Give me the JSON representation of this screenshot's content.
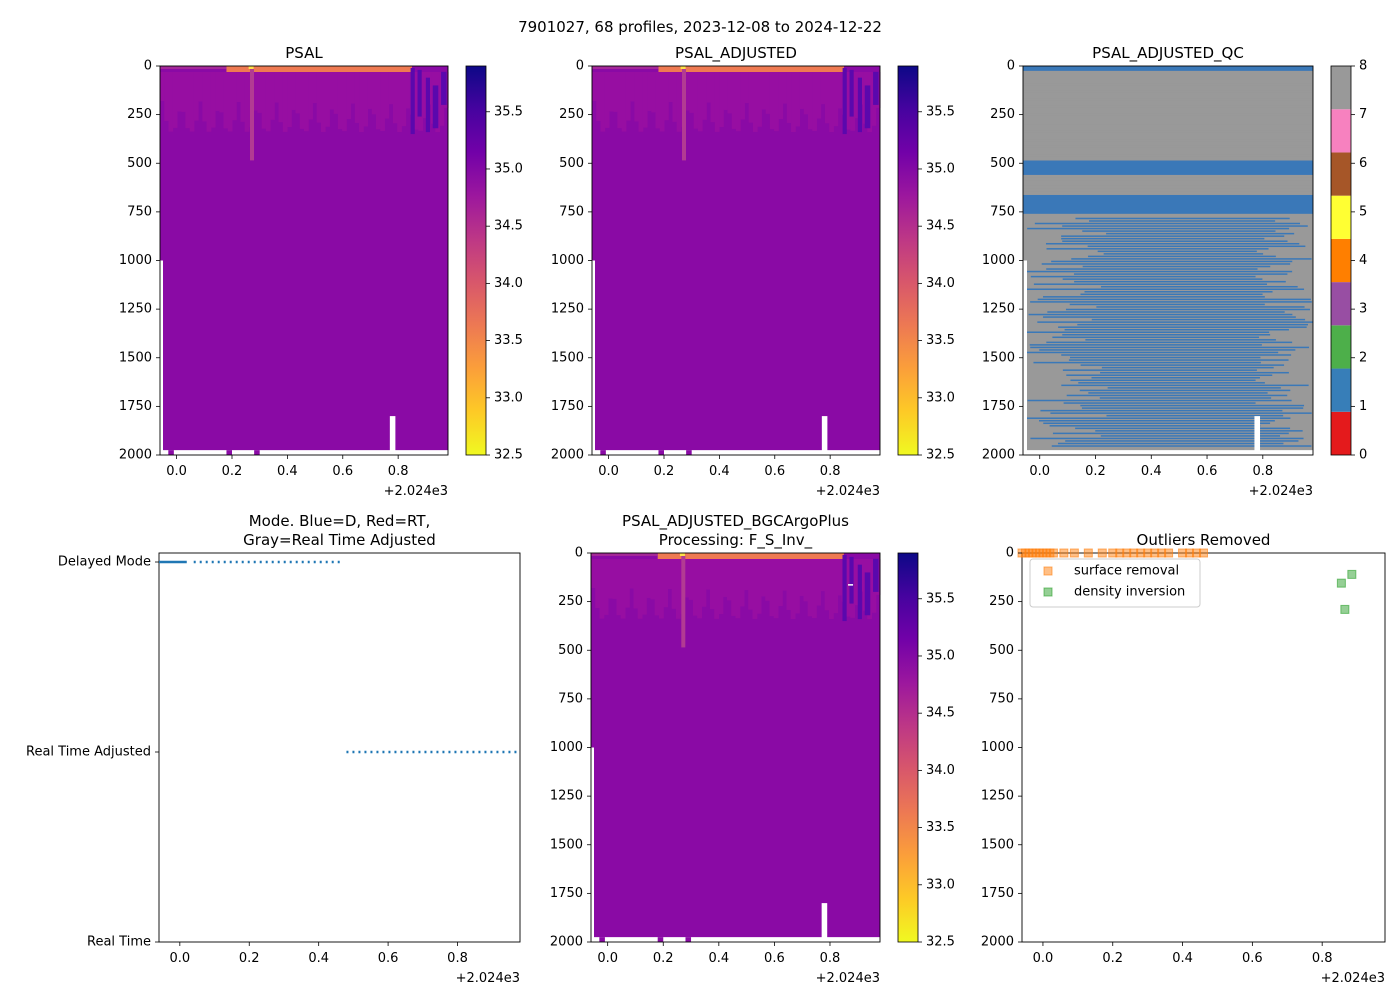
{
  "figure": {
    "suptitle": "7901027, 68 profiles, 2023-12-08 to 2024-12-22",
    "x_offset_label": "+2.024e3"
  },
  "colors": {
    "plasma": [
      "#0d0887",
      "#46039f",
      "#7201a8",
      "#9c179e",
      "#bd3786",
      "#d8576b",
      "#ed7953",
      "#fb9f3a",
      "#fdca26",
      "#f0f921"
    ],
    "field_main": "#8a0aa5",
    "field_upper": "#970ea2",
    "surface_high": "#ee7a52",
    "deep_blue": "#5a08ad",
    "qc_blue": "#3a78b8",
    "qc_gray": "#999999",
    "mode_line": "#1f77b4",
    "surface_marker": "#ff7f0e",
    "density_marker": "#2ca02c"
  },
  "chart_data": [
    {
      "id": "psal",
      "type": "heatmap",
      "title": "PSAL",
      "xlim": [
        -0.06,
        0.98
      ],
      "xticks": [
        0.0,
        0.2,
        0.4,
        0.6,
        0.8
      ],
      "ylim": [
        2000,
        0
      ],
      "yticks": [
        0,
        250,
        500,
        750,
        1000,
        1250,
        1500,
        1750,
        2000
      ],
      "colorbar": {
        "range": [
          32.5,
          35.9
        ],
        "ticks": [
          32.5,
          33.0,
          33.5,
          34.0,
          34.5,
          35.0,
          35.5
        ]
      },
      "colormap": "plasma_r",
      "typical_value": 34.9,
      "surface_value": 33.3,
      "gap_x": [
        0.77,
        0.79
      ],
      "gap_depth": [
        1800,
        2000
      ]
    },
    {
      "id": "psal_adj",
      "type": "heatmap",
      "title": "PSAL_ADJUSTED",
      "xlim": [
        -0.06,
        0.98
      ],
      "xticks": [
        0.0,
        0.2,
        0.4,
        0.6,
        0.8
      ],
      "ylim": [
        2000,
        0
      ],
      "yticks": [
        0,
        250,
        500,
        750,
        1000,
        1250,
        1500,
        1750,
        2000
      ],
      "colorbar": {
        "range": [
          32.5,
          35.9
        ],
        "ticks": [
          32.5,
          33.0,
          33.5,
          34.0,
          34.5,
          35.0,
          35.5
        ]
      },
      "colormap": "plasma_r",
      "typical_value": 34.9,
      "surface_value": 33.3,
      "gap_x": [
        0.77,
        0.79
      ],
      "gap_depth": [
        1800,
        2000
      ]
    },
    {
      "id": "psal_qc",
      "type": "heatmap",
      "title": "PSAL_ADJUSTED_QC",
      "xlim": [
        -0.06,
        0.98
      ],
      "xticks": [
        0.0,
        0.2,
        0.4,
        0.6,
        0.8
      ],
      "ylim": [
        2000,
        0
      ],
      "yticks": [
        0,
        250,
        500,
        750,
        1000,
        1250,
        1500,
        1750,
        2000
      ],
      "colorbar": {
        "range": [
          0,
          8
        ],
        "ticks": [
          0,
          1,
          2,
          3,
          4,
          5,
          6,
          7,
          8
        ],
        "classes": [
          {
            "value": 0,
            "color": "#e41a1c"
          },
          {
            "value": 1,
            "color": "#377eb8"
          },
          {
            "value": 2,
            "color": "#4daf4a"
          },
          {
            "value": 3,
            "color": "#984ea3"
          },
          {
            "value": 4,
            "color": "#ff7f00"
          },
          {
            "value": 5,
            "color": "#ffff33"
          },
          {
            "value": 6,
            "color": "#a65628"
          },
          {
            "value": 7,
            "color": "#f781bf"
          },
          {
            "value": 8,
            "color": "#999999"
          }
        ]
      },
      "blue_bands_depth": [
        [
          0,
          20
        ],
        [
          470,
          560
        ],
        [
          650,
          740
        ]
      ],
      "gap_x": [
        0.77,
        0.79
      ],
      "gap_depth": [
        1800,
        2000
      ]
    },
    {
      "id": "mode",
      "type": "line",
      "title_lines": [
        "Mode. Blue=D, Red=RT,",
        "Gray=Real Time Adjusted"
      ],
      "xlim": [
        -0.06,
        0.98
      ],
      "xticks": [
        0.0,
        0.2,
        0.4,
        0.6,
        0.8
      ],
      "ycategories": [
        "Real Time",
        "Real Time Adjusted",
        "Delayed Mode"
      ],
      "solid_segment": {
        "category": "Delayed Mode",
        "x": [
          -0.06,
          0.02
        ]
      },
      "dotted_segments": [
        {
          "category": "Delayed Mode",
          "x": [
            0.04,
            0.47
          ]
        },
        {
          "category": "Real Time Adjusted",
          "x": [
            0.48,
            0.98
          ]
        }
      ]
    },
    {
      "id": "psal_bgc",
      "type": "heatmap",
      "title_lines": [
        "PSAL_ADJUSTED_BGCArgoPlus",
        "Processing: F_S_Inv_"
      ],
      "xlim": [
        -0.06,
        0.98
      ],
      "xticks": [
        0.0,
        0.2,
        0.4,
        0.6,
        0.8
      ],
      "ylim": [
        2000,
        0
      ],
      "yticks": [
        0,
        250,
        500,
        750,
        1000,
        1250,
        1500,
        1750,
        2000
      ],
      "colorbar": {
        "range": [
          32.5,
          35.9
        ],
        "ticks": [
          32.5,
          33.0,
          33.5,
          34.0,
          34.5,
          35.0,
          35.5
        ]
      },
      "colormap": "plasma_r",
      "typical_value": 34.9,
      "surface_value": 33.3,
      "gap_x": [
        0.77,
        0.79
      ],
      "gap_depth": [
        1800,
        2000
      ]
    },
    {
      "id": "outliers",
      "type": "scatter",
      "title": "Outliers Removed",
      "xlim": [
        -0.06,
        0.98
      ],
      "xticks": [
        0.0,
        0.2,
        0.4,
        0.6,
        0.8
      ],
      "ylim": [
        2000,
        0
      ],
      "yticks": [
        0,
        250,
        500,
        750,
        1000,
        1250,
        1500,
        1750,
        2000
      ],
      "legend": {
        "location": "upper left",
        "entries": [
          "surface removal",
          "density inversion"
        ]
      },
      "series": [
        {
          "name": "surface removal",
          "x": [
            -0.06,
            -0.05,
            -0.04,
            -0.03,
            -0.02,
            -0.01,
            0.0,
            0.01,
            0.02,
            0.03,
            0.06,
            0.09,
            0.13,
            0.17,
            0.2,
            0.22,
            0.24,
            0.26,
            0.28,
            0.3,
            0.32,
            0.34,
            0.36,
            0.4,
            0.42,
            0.44,
            0.46
          ],
          "y": [
            0,
            0,
            0,
            0,
            0,
            0,
            0,
            0,
            0,
            0,
            0,
            0,
            0,
            0,
            0,
            0,
            0,
            0,
            0,
            0,
            0,
            0,
            0,
            0,
            0,
            0,
            0
          ]
        },
        {
          "name": "density inversion",
          "x": [
            0.855,
            0.885,
            0.865
          ],
          "y": [
            155,
            110,
            290
          ]
        }
      ]
    }
  ]
}
